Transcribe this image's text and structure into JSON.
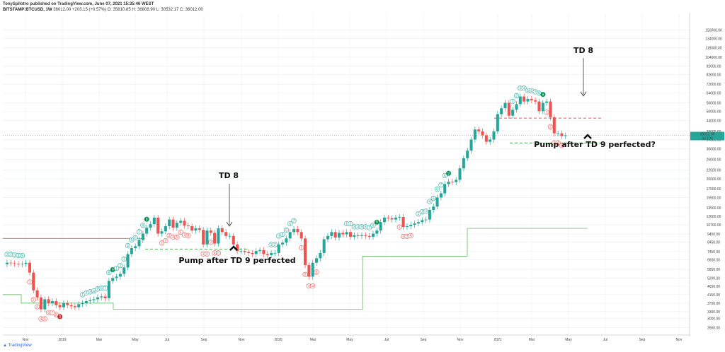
{
  "header": {
    "published": "TonySpilotro published on TradingView.com, June 07, 2021 15:35:46 WEST",
    "symbol": "BITSTAMP:BTCUSD, 1W",
    "ohlc": "36012.00 +203.15 (+0.57%) O: 35810.85 H: 36808.90 L: 30532.17 C: 36012.00"
  },
  "brand": "TradingView",
  "colors": {
    "up": "#26a69a",
    "down": "#ef5350",
    "grid": "#e9edf2",
    "green_line": "#4caf50",
    "red_line": "#ef5350"
  },
  "chart_data": {
    "type": "candlestick",
    "title": "",
    "yscale": "log",
    "ylim": [
      2400,
      190000
    ],
    "xlabel": "",
    "ylabel": "",
    "x_ticks": [
      "Nov",
      "2019",
      "Mar",
      "May",
      "Jul",
      "Sep",
      "Nov",
      "2020",
      "Mar",
      "May",
      "Jul",
      "Sep",
      "Nov",
      "2021",
      "Mar",
      "May",
      "Jul",
      "Sep",
      "Nov"
    ],
    "y_ticks": [
      "2660.00",
      "3000.00",
      "3300.00",
      "3700.00",
      "4150.00",
      "4650.00",
      "5200.00",
      "5850.00",
      "6650.00",
      "7450.00",
      "8450.00",
      "9450.00",
      "10700.00",
      "12000.00",
      "13500.00",
      "15500.00",
      "17500.00",
      "20000.00",
      "22500.00",
      "26000.00",
      "30000.00",
      "34000.00",
      "38000.00",
      "44000.00",
      "50000.00",
      "56000.00",
      "64000.00",
      "72000.00",
      "82000.00",
      "92000.00",
      "104000.00",
      "118000.00",
      "134000.00",
      "150000.00"
    ],
    "price_label": "36012.00",
    "price_sublabel": "6d 10h",
    "closes": [
      6400,
      6350,
      6300,
      6250,
      6300,
      6400,
      5600,
      4400,
      4000,
      3400,
      3900,
      3700,
      3800,
      3600,
      3500,
      3700,
      3600,
      3550,
      3500,
      3650,
      3700,
      3800,
      3850,
      3900,
      4000,
      4050,
      3950,
      5000,
      5200,
      5300,
      5500,
      6000,
      7200,
      7800,
      8000,
      8700,
      9500,
      10300,
      10800,
      11800,
      9500,
      9800,
      10500,
      11500,
      10300,
      11000,
      11300,
      10600,
      10500,
      9900,
      10200,
      10000,
      8200,
      9900,
      9600,
      8300,
      10200,
      9700,
      9200,
      9200,
      8200,
      7500,
      7500,
      7400,
      7300,
      7200,
      7500,
      7600,
      7200,
      7100,
      7300,
      7300,
      8200,
      8400,
      8900,
      9700,
      10100,
      9700,
      8900,
      6200,
      5300,
      6400,
      6800,
      7300,
      8800,
      9200,
      9700,
      9000,
      9600,
      9400,
      9700,
      9100,
      9300,
      9200,
      9300,
      9200,
      9100,
      9500,
      9900,
      11100,
      11800,
      11700,
      11500,
      11800,
      11900,
      10400,
      10500,
      10700,
      10900,
      11100,
      11400,
      11500,
      13100,
      13700,
      15500,
      16400,
      18600,
      19200,
      19100,
      19700,
      23000,
      26400,
      29300,
      34000,
      39000,
      38000,
      36000,
      33000,
      34000,
      38000,
      48000,
      52000,
      56000,
      47000,
      51000,
      55000,
      61000,
      57000,
      59000,
      58000,
      57000,
      50000,
      56000,
      57000,
      46000,
      37000,
      37000,
      35700,
      36012
    ],
    "td_counts": [
      {
        "week": 0,
        "n": 1,
        "side": "up"
      },
      {
        "week": 1,
        "n": 2,
        "side": "up"
      },
      {
        "week": 2,
        "n": 3,
        "side": "up"
      },
      {
        "week": 3,
        "n": 4,
        "side": "up"
      },
      {
        "week": 4,
        "n": 5,
        "side": "up"
      },
      {
        "week": 6,
        "n": 1,
        "side": "down"
      },
      {
        "week": 7,
        "n": 2,
        "side": "down"
      },
      {
        "week": 8,
        "n": 3,
        "side": "down"
      },
      {
        "week": 9,
        "n": 4,
        "side": "down"
      },
      {
        "week": 10,
        "n": 5,
        "side": "down"
      },
      {
        "week": 11,
        "n": 6,
        "side": "down"
      },
      {
        "week": 12,
        "n": 7,
        "side": "down"
      },
      {
        "week": 13,
        "n": 8,
        "side": "down"
      },
      {
        "week": 14,
        "n": 9,
        "side": "down"
      },
      {
        "week": 20,
        "n": 1,
        "side": "up"
      },
      {
        "week": 21,
        "n": 2,
        "side": "up"
      },
      {
        "week": 22,
        "n": 3,
        "side": "up"
      },
      {
        "week": 23,
        "n": 4,
        "side": "up"
      },
      {
        "week": 24,
        "n": 5,
        "side": "up"
      },
      {
        "week": 25,
        "n": 6,
        "side": "up"
      },
      {
        "week": 26,
        "n": 7,
        "side": "up"
      },
      {
        "week": 27,
        "n": 8,
        "side": "up"
      },
      {
        "week": 28,
        "n": 9,
        "side": "up"
      },
      {
        "week": 29,
        "n": 1,
        "side": "up"
      },
      {
        "week": 30,
        "n": 2,
        "side": "up"
      },
      {
        "week": 31,
        "n": 3,
        "side": "up"
      },
      {
        "week": 32,
        "n": 4,
        "side": "up"
      },
      {
        "week": 33,
        "n": 5,
        "side": "up"
      },
      {
        "week": 34,
        "n": 6,
        "side": "up"
      },
      {
        "week": 35,
        "n": 7,
        "side": "up"
      },
      {
        "week": 36,
        "n": 8,
        "side": "up"
      },
      {
        "week": 37,
        "n": 9,
        "side": "up"
      },
      {
        "week": 41,
        "n": 1,
        "side": "down"
      },
      {
        "week": 42,
        "n": 2,
        "side": "down"
      },
      {
        "week": 43,
        "n": 3,
        "side": "down"
      },
      {
        "week": 44,
        "n": 4,
        "side": "down"
      },
      {
        "week": 45,
        "n": 5,
        "side": "down"
      },
      {
        "week": 46,
        "n": 6,
        "side": "down"
      },
      {
        "week": 47,
        "n": 7,
        "side": "down"
      },
      {
        "week": 48,
        "n": 8,
        "side": "down"
      },
      {
        "week": 52,
        "n": 1,
        "side": "down"
      },
      {
        "week": 53,
        "n": 2,
        "side": "down"
      },
      {
        "week": 54,
        "n": 3,
        "side": "down"
      },
      {
        "week": 55,
        "n": 4,
        "side": "down"
      },
      {
        "week": 56,
        "n": 5,
        "side": "down"
      },
      {
        "week": 70,
        "n": 1,
        "side": "up"
      },
      {
        "week": 71,
        "n": 2,
        "side": "up"
      },
      {
        "week": 72,
        "n": 3,
        "side": "up"
      },
      {
        "week": 73,
        "n": 4,
        "side": "up"
      },
      {
        "week": 74,
        "n": 5,
        "side": "up"
      },
      {
        "week": 75,
        "n": 6,
        "side": "up"
      },
      {
        "week": 76,
        "n": 7,
        "side": "up"
      },
      {
        "week": 78,
        "n": 1,
        "side": "down"
      },
      {
        "week": 79,
        "n": 2,
        "side": "down"
      },
      {
        "week": 80,
        "n": 3,
        "side": "down"
      },
      {
        "week": 81,
        "n": 4,
        "side": "down"
      },
      {
        "week": 82,
        "n": 5,
        "side": "down"
      },
      {
        "week": 90,
        "n": 1,
        "side": "up"
      },
      {
        "week": 91,
        "n": 2,
        "side": "up"
      },
      {
        "week": 92,
        "n": 3,
        "side": "up"
      },
      {
        "week": 93,
        "n": 4,
        "side": "up"
      },
      {
        "week": 94,
        "n": 5,
        "side": "up"
      },
      {
        "week": 95,
        "n": 6,
        "side": "up"
      },
      {
        "week": 96,
        "n": 7,
        "side": "up"
      },
      {
        "week": 97,
        "n": 8,
        "side": "up"
      },
      {
        "week": 98,
        "n": 9,
        "side": "up"
      },
      {
        "week": 104,
        "n": 1,
        "side": "down"
      },
      {
        "week": 105,
        "n": 2,
        "side": "down"
      },
      {
        "week": 106,
        "n": 3,
        "side": "down"
      },
      {
        "week": 107,
        "n": 4,
        "side": "down"
      },
      {
        "week": 109,
        "n": 1,
        "side": "up"
      },
      {
        "week": 110,
        "n": 2,
        "side": "up"
      },
      {
        "week": 111,
        "n": 3,
        "side": "up"
      },
      {
        "week": 112,
        "n": 4,
        "side": "up"
      },
      {
        "week": 113,
        "n": 5,
        "side": "up"
      },
      {
        "week": 114,
        "n": 6,
        "side": "up"
      },
      {
        "week": 115,
        "n": 7,
        "side": "up"
      },
      {
        "week": 116,
        "n": 8,
        "side": "up"
      },
      {
        "week": 117,
        "n": 9,
        "side": "up"
      },
      {
        "week": 134,
        "n": 1,
        "side": "up"
      },
      {
        "week": 135,
        "n": 2,
        "side": "up"
      },
      {
        "week": 136,
        "n": 3,
        "side": "up"
      },
      {
        "week": 137,
        "n": 4,
        "side": "up"
      },
      {
        "week": 138,
        "n": 5,
        "side": "up"
      },
      {
        "week": 139,
        "n": 6,
        "side": "up"
      },
      {
        "week": 140,
        "n": 7,
        "side": "up"
      },
      {
        "week": 141,
        "n": 8,
        "side": "up"
      },
      {
        "week": 142,
        "n": 9,
        "side": "up"
      },
      {
        "week": 143,
        "n": 1,
        "side": "down"
      },
      {
        "week": 144,
        "n": 2,
        "side": "down"
      },
      {
        "week": 145,
        "n": 3,
        "side": "down"
      },
      {
        "week": 146,
        "n": 4,
        "side": "down"
      },
      {
        "week": 147,
        "n": 5,
        "side": "down"
      }
    ],
    "annotations": [
      {
        "text": "TD 8",
        "role": "label-2019"
      },
      {
        "text": "Pump after TD 9 perfected",
        "role": "caption-2019"
      },
      {
        "text": "TD 8",
        "role": "label-2021"
      },
      {
        "text": "Pump after TD 9 perfected?",
        "role": "caption-2021"
      }
    ],
    "levels": [
      {
        "price": 8900,
        "style": "solid",
        "color": "red"
      },
      {
        "price": 7700,
        "style": "dashed",
        "color": "green"
      },
      {
        "price": 45500,
        "style": "dashed",
        "color": "red"
      },
      {
        "price": 32500,
        "style": "dashed",
        "color": "green"
      }
    ],
    "grid": true
  }
}
